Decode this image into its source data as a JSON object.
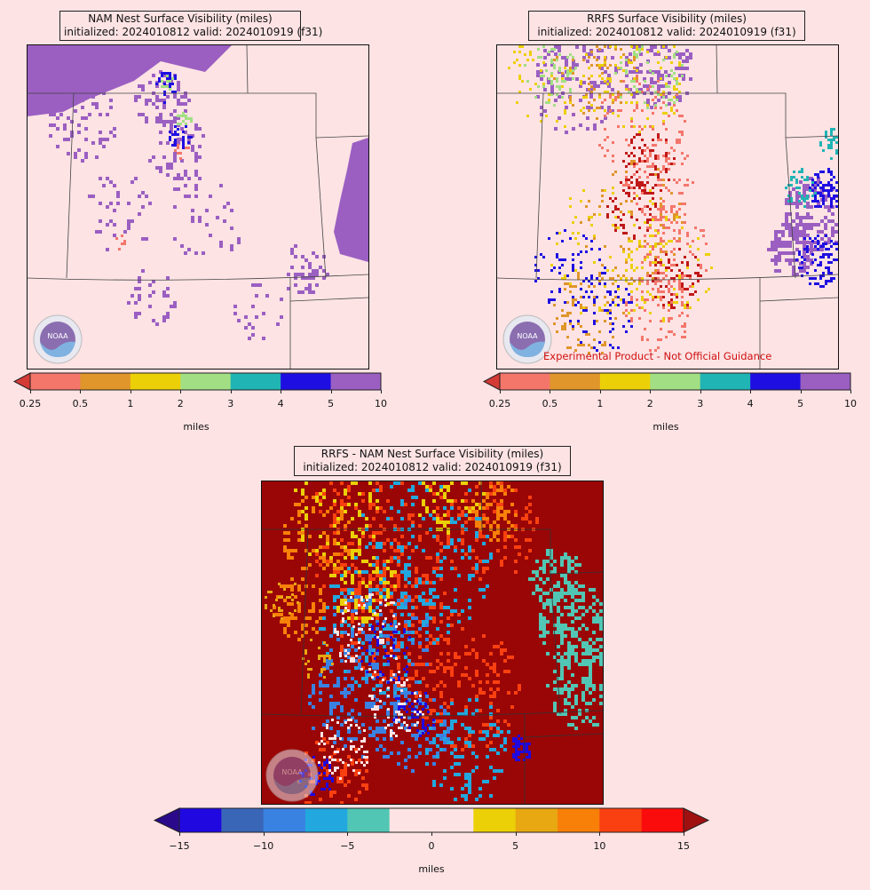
{
  "panels": {
    "nam": {
      "title_line1": "NAM Nest Surface Visibility (miles)",
      "title_line2": "initialized: 2024010812 valid: 2024010919 (f31)"
    },
    "rrfs": {
      "title_line1": "RRFS Surface Visibility (miles)",
      "title_line2": "initialized: 2024010812 valid: 2024010919 (f31)",
      "disclaimer": "Experimental Product - Not Official Guidance"
    },
    "diff": {
      "title_line1": "RRFS - NAM Nest Surface Visibility (miles)",
      "title_line2": "initialized: 2024010812 valid: 2024010919 (f31)"
    }
  },
  "visibility_colorbar": {
    "ticks": [
      "0.25",
      "0.5",
      "1",
      "2",
      "3",
      "4",
      "5",
      "10"
    ],
    "colors": [
      "#f4766b",
      "#e0962a",
      "#ecd007",
      "#a2df84",
      "#20b4b4",
      "#1f0ee2",
      "#9b5fc2"
    ],
    "under_color": "#d43a36",
    "unit": "miles"
  },
  "diff_colorbar": {
    "ticks": [
      "−15",
      "−10",
      "−5",
      "0",
      "5",
      "10",
      "15"
    ],
    "colors": [
      "#2008e0",
      "#3a66b8",
      "#3a82e2",
      "#22a8de",
      "#52c6b4",
      "#fde3e4",
      "#fde3e4",
      "#ecd007",
      "#e8a812",
      "#f88008",
      "#fa4010",
      "#fa0c0c"
    ],
    "under_color": "#2a0a8a",
    "over_color": "#a01010",
    "unit": "miles"
  },
  "logo_text": "NOAA"
}
